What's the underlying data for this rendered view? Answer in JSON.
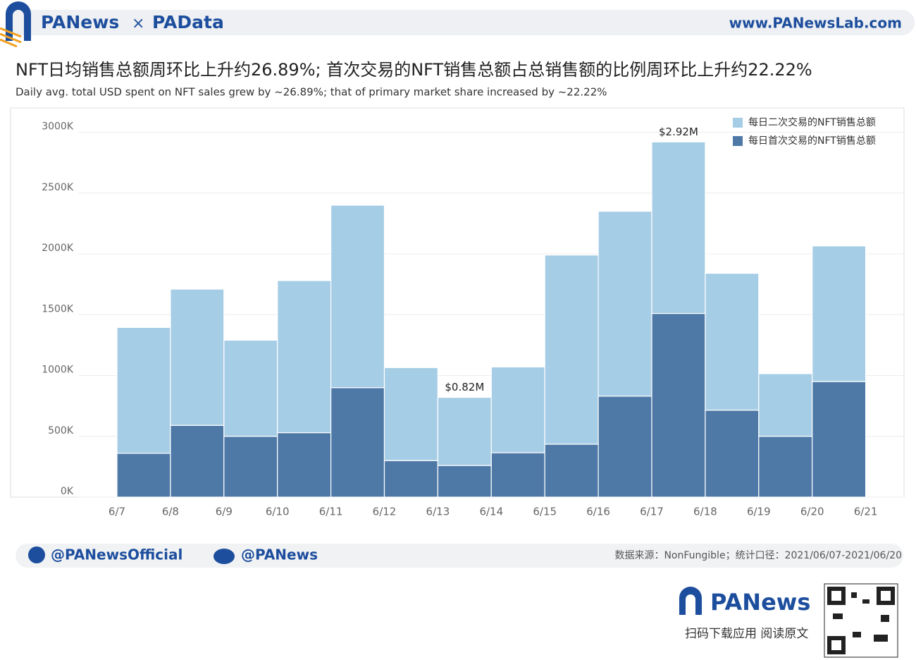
{
  "header": {
    "brand": "PANews",
    "separator": "×",
    "partner": "PAData",
    "url": "www.PANewsLab.com"
  },
  "chart_data": {
    "type": "bar",
    "stacked": true,
    "title": "NFT日均销售总额周环比上升约26.89%; 首次交易的NFT销售总额占总销售额的比例周环比上升约22.22%",
    "subtitle": "Daily avg. total USD spent on NFT sales grew by ~26.89%; that of primary market share increased by ~22.22%",
    "categories": [
      "6/7",
      "6/8",
      "6/9",
      "6/10",
      "6/11",
      "6/12",
      "6/13",
      "6/14",
      "6/15",
      "6/16",
      "6/17",
      "6/18",
      "6/19",
      "6/20",
      "6/21"
    ],
    "series": [
      {
        "name": "每日首次交易的NFT销售总额",
        "color": "#4e79a7",
        "values": [
          360,
          590,
          500,
          530,
          900,
          300,
          260,
          365,
          435,
          830,
          1510,
          715,
          500,
          950,
          null
        ]
      },
      {
        "name": "每日二次交易的NFT销售总额",
        "color": "#a6cde6",
        "values": [
          1035,
          1120,
          790,
          1250,
          1500,
          765,
          560,
          705,
          1555,
          1520,
          1410,
          1125,
          515,
          1115,
          null
        ]
      }
    ],
    "annotations": [
      {
        "x": "6/13",
        "value": 820,
        "label": "$0.82M"
      },
      {
        "x": "6/17",
        "value": 2920,
        "label": "$2.92M"
      }
    ],
    "ylim": [
      0,
      3200
    ],
    "yticks": [
      {
        "value": 0,
        "label": "0K"
      },
      {
        "value": 500,
        "label": "500K"
      },
      {
        "value": 1000,
        "label": "1000K"
      },
      {
        "value": 1500,
        "label": "1500K"
      },
      {
        "value": 2000,
        "label": "2000K"
      },
      {
        "value": 2500,
        "label": "2500K"
      },
      {
        "value": 3000,
        "label": "3000K"
      }
    ],
    "grid": true,
    "legend": "upper right"
  },
  "footer": {
    "twitter": "@PANewsOfficial",
    "weibo": "@PANews",
    "source": "数据来源：NonFungible；统计口径：2021/06/07-2021/06/20",
    "app_brand": "PANews",
    "app_caption": "扫码下载应用 阅读原文"
  }
}
